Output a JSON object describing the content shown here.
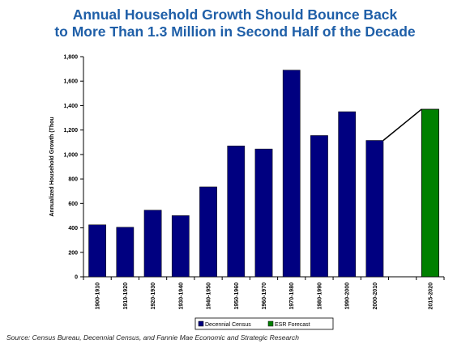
{
  "title_line1": "Annual Household Growth Should Bounce Back",
  "title_line2": "to More Than 1.3 Million in Second Half of the Decade",
  "source": "Source: Census Bureau, Decennial Census, and Fannie Mae Economic and Strategic Research",
  "colors": {
    "census": "#000080",
    "forecast": "#008000",
    "title": "#1f5fa8"
  },
  "chart_data": {
    "type": "bar",
    "ylabel": "Annualized Household Growth (Thou",
    "xlabel": "",
    "ylim": [
      0,
      1800
    ],
    "yticks": [
      "0",
      "200",
      "400",
      "600",
      "800",
      "1,000",
      "1,200",
      "1,400",
      "1,600",
      "1,800"
    ],
    "grid": false,
    "legend_position": "bottom",
    "series": [
      {
        "name": "Decennial Census",
        "categories": [
          "1900-1910",
          "1910-1920",
          "1920-1930",
          "1930-1940",
          "1940-1950",
          "1950-1960",
          "1960-1970",
          "1970-1980",
          "1980-1990",
          "1990-2000",
          "2000-2010"
        ],
        "values": [
          425,
          405,
          545,
          500,
          735,
          1070,
          1045,
          1690,
          1155,
          1350,
          1115
        ]
      },
      {
        "name": "ESR Forecast",
        "categories": [
          "2015-2020"
        ],
        "values": [
          1370
        ]
      }
    ],
    "annotations": [
      {
        "type": "connector-line",
        "from_category": "2000-2010",
        "to_category": "2015-2020"
      }
    ]
  }
}
